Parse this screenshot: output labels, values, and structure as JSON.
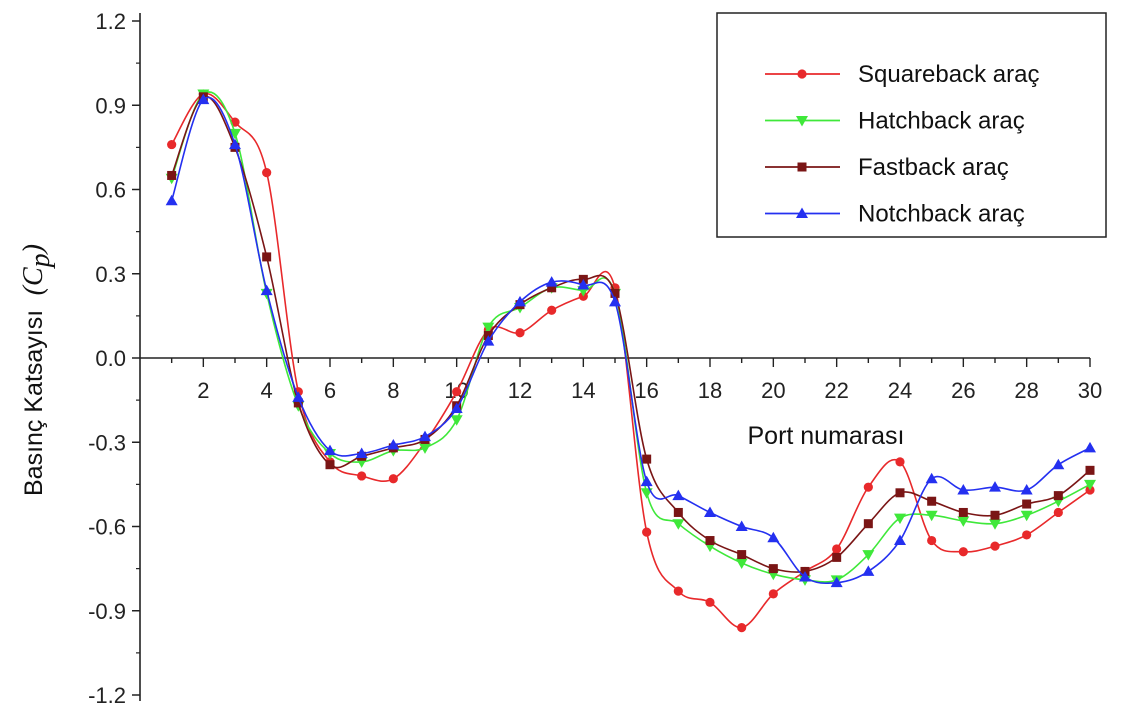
{
  "chart_data": {
    "type": "line",
    "xlabel": "Port numarası",
    "ylabel": "Basınç Katsayısı",
    "ylabel_symbol": "C",
    "ylabel_subscript": "p",
    "xlim": [
      0,
      30
    ],
    "ylim": [
      -1.2,
      1.2
    ],
    "x_ticks": [
      "2",
      "4",
      "6",
      "8",
      "10",
      "12",
      "14",
      "16",
      "18",
      "20",
      "22",
      "24",
      "26",
      "28",
      "30"
    ],
    "y_ticks": [
      "1.2",
      "0.9",
      "0.6",
      "0.3",
      "0.0",
      "-0.3",
      "-0.6",
      "-0.9",
      "-1.2"
    ],
    "grid": false,
    "legend_position": "top-right",
    "x": [
      1,
      2,
      3,
      4,
      5,
      6,
      7,
      8,
      9,
      10,
      11,
      12,
      13,
      14,
      15,
      16,
      17,
      18,
      19,
      20,
      21,
      22,
      23,
      24,
      25,
      26,
      27,
      28,
      29,
      30
    ],
    "series": [
      {
        "name": "Squareback araç",
        "color": "#e8292b",
        "marker": "circle",
        "values": [
          0.76,
          0.94,
          0.84,
          0.66,
          -0.12,
          -0.37,
          -0.42,
          -0.43,
          -0.3,
          -0.12,
          0.1,
          0.09,
          0.17,
          0.22,
          0.25,
          -0.62,
          -0.83,
          -0.87,
          -0.96,
          -0.84,
          -0.76,
          -0.68,
          -0.46,
          -0.37,
          -0.65,
          -0.69,
          -0.67,
          -0.63,
          -0.55,
          -0.47
        ]
      },
      {
        "name": "Hatchback araç",
        "color": "#3fe83a",
        "marker": "triangle-down",
        "values": [
          0.64,
          0.94,
          0.8,
          0.23,
          -0.17,
          -0.34,
          -0.37,
          -0.33,
          -0.32,
          -0.22,
          0.11,
          0.18,
          0.25,
          0.24,
          0.23,
          -0.48,
          -0.59,
          -0.67,
          -0.73,
          -0.77,
          -0.79,
          -0.79,
          -0.7,
          -0.57,
          -0.56,
          -0.58,
          -0.59,
          -0.56,
          -0.51,
          -0.45
        ]
      },
      {
        "name": "Fastback araç",
        "color": "#7a1515",
        "marker": "square",
        "values": [
          0.65,
          0.93,
          0.75,
          0.36,
          -0.16,
          -0.38,
          -0.35,
          -0.32,
          -0.29,
          -0.17,
          0.08,
          0.19,
          0.25,
          0.28,
          0.23,
          -0.36,
          -0.55,
          -0.65,
          -0.7,
          -0.75,
          -0.76,
          -0.71,
          -0.59,
          -0.48,
          -0.51,
          -0.55,
          -0.56,
          -0.52,
          -0.49,
          -0.4
        ]
      },
      {
        "name": "Notchback araç",
        "color": "#2430f0",
        "marker": "triangle-up",
        "values": [
          0.56,
          0.92,
          0.76,
          0.24,
          -0.14,
          -0.33,
          -0.34,
          -0.31,
          -0.28,
          -0.18,
          0.06,
          0.2,
          0.27,
          0.26,
          0.2,
          -0.44,
          -0.49,
          -0.55,
          -0.6,
          -0.64,
          -0.78,
          -0.8,
          -0.76,
          -0.65,
          -0.43,
          -0.47,
          -0.46,
          -0.47,
          -0.38,
          -0.32
        ]
      }
    ]
  }
}
